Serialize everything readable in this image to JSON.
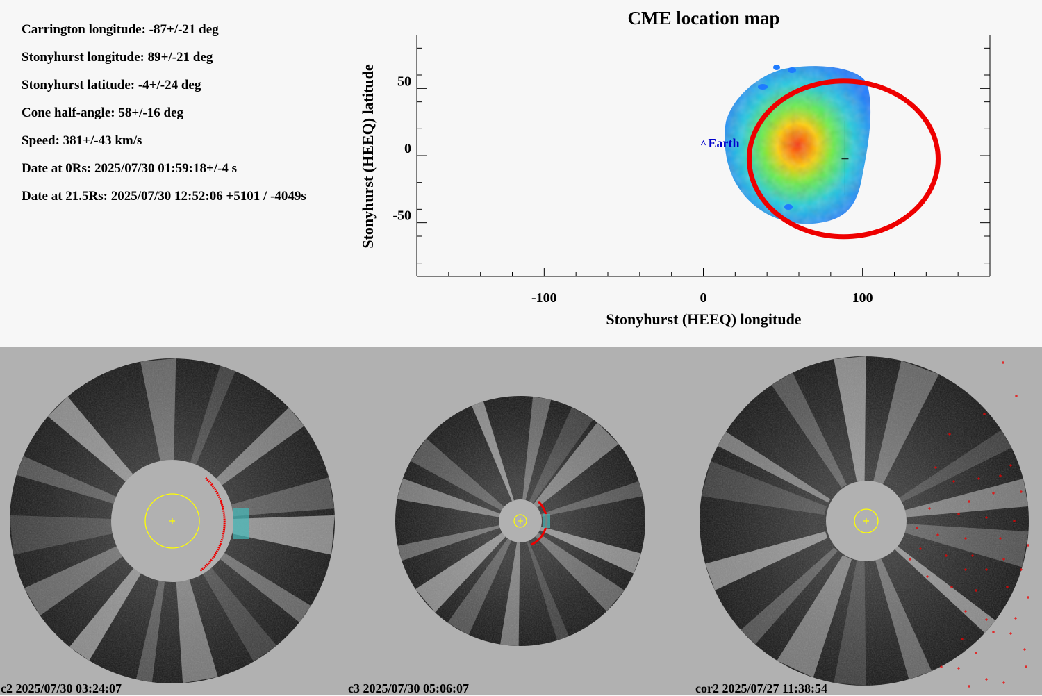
{
  "info": {
    "carrington_longitude": "Carrington longitude: -87+/-21 deg",
    "stonyhurst_longitude": "Stonyhurst longitude: 89+/-21 deg",
    "stonyhurst_latitude": "Stonyhurst latitude: -4+/-24 deg",
    "cone_half_angle": "Cone half-angle: 58+/-16 deg",
    "speed": "Speed: 381+/-43 km/s",
    "date_0rs": "Date at 0Rs: 2025/07/30 01:59:18+/-4 s",
    "date_21rs": "Date at 21.5Rs: 2025/07/30 12:52:06 +5101 / -4049s"
  },
  "map": {
    "title": "CME location map",
    "xlabel": "Stonyhurst (HEEQ) longitude",
    "ylabel": "Stonyhurst (HEEQ) latitude",
    "earth_label": "Earth",
    "x_ticks": [
      "-100",
      "0",
      "100"
    ],
    "y_ticks": [
      "50",
      "0",
      "-50"
    ],
    "colors": {
      "cone_outline": "#ee0000",
      "earth": "#0000cc",
      "frame": "#000000"
    }
  },
  "chart_data": {
    "type": "scatter",
    "title": "CME location map",
    "xlabel": "Stonyhurst (HEEQ) longitude",
    "ylabel": "Stonyhurst (HEEQ) latitude",
    "xlim": [
      -180,
      180
    ],
    "ylim": [
      -90,
      90
    ],
    "x_ticks": [
      -100,
      0,
      100
    ],
    "y_ticks": [
      -50,
      0,
      50
    ],
    "earth": {
      "lon": 0,
      "lat": 0
    },
    "cme_center": {
      "lon": 89,
      "lat": -4
    },
    "cone_half_angle": 58
  },
  "images": [
    {
      "caption": "c2 2025/07/30 03:24:07",
      "instrument": "c2"
    },
    {
      "caption": "c3 2025/07/30 05:06:07",
      "instrument": "c3"
    },
    {
      "caption": "cor2 2025/07/27 11:38:54",
      "instrument": "cor2"
    }
  ]
}
